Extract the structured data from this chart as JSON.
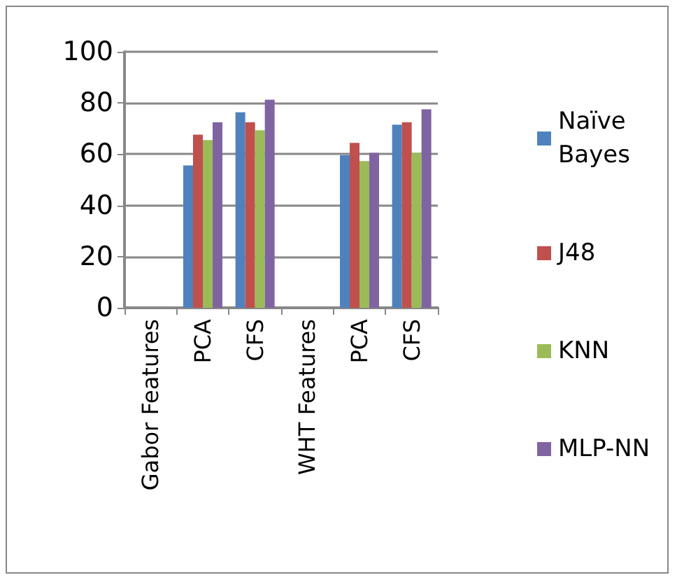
{
  "chart_data": {
    "type": "bar",
    "categories": [
      "Gabor Features",
      "PCA",
      "CFS",
      "WHT Features",
      "PCA",
      "CFS"
    ],
    "series": [
      {
        "name": "Naïve Bayes",
        "color": "#4f81bd",
        "values": [
          null,
          55.6,
          76.4,
          null,
          59.6,
          71.5
        ]
      },
      {
        "name": "J48",
        "color": "#c0504d",
        "values": [
          null,
          67.6,
          72.5,
          null,
          64.4,
          72.5
        ]
      },
      {
        "name": "KNN",
        "color": "#9bbb59",
        "values": [
          null,
          65.5,
          69.3,
          null,
          57.3,
          60.5
        ]
      },
      {
        "name": "MLP-NN",
        "color": "#8064a2",
        "values": [
          null,
          72.5,
          81.3,
          null,
          60.5,
          77.5
        ]
      }
    ],
    "ylim": [
      0,
      100
    ],
    "yticks": [
      0,
      20,
      40,
      60,
      80,
      100
    ],
    "grid": "y",
    "legend": "right"
  }
}
